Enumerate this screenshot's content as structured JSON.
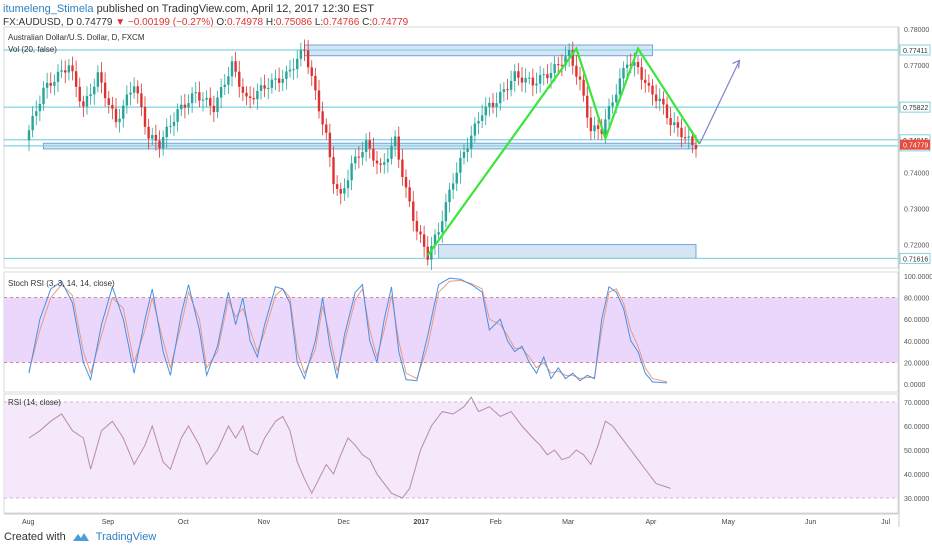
{
  "header": {
    "author": "itumeleng_Stimela",
    "published_text": "published on TradingView.com, April 12, 2017 12:30 EST",
    "symbol": "FX:AUDUSD, D",
    "last": "0.74779",
    "change": "−0.00199 (−0.27%)",
    "ohlc": [
      {
        "label": "O:",
        "value": "0.74978"
      },
      {
        "label": "H:",
        "value": "0.75086"
      },
      {
        "label": "L:",
        "value": "0.74766"
      },
      {
        "label": "C:",
        "value": "0.74779"
      }
    ]
  },
  "footer": {
    "created_with": "Created with",
    "brand": "TradingView"
  },
  "colors": {
    "up": "#26a69a",
    "down": "#e03131",
    "green_line": "#39e639",
    "zone_fill": "#c8dcf0",
    "zone_stroke": "#5b8fd6",
    "hline": "#7fd4e0",
    "stoch_k": "#4a90e2",
    "stoch_d": "#e89a84",
    "stoch_band": "#e8d0fb",
    "rsi_line": "#b98aa8",
    "rsi_band": "#f4e6fb",
    "price_tag": "#e74c3c",
    "arrow": "#7b84c9"
  },
  "chart_data": [
    {
      "type": "candlestick",
      "title": "Australian Dollar/U.S. Dollar, D, FXCM",
      "subtitle": "Vol (20, false)",
      "xaxis": {
        "tick_labels": [
          "Aug",
          "Sep",
          "Oct",
          "Nov",
          "Dec",
          "2017",
          "Feb",
          "Mar",
          "Apr",
          "May",
          "Jun",
          "Jul"
        ],
        "tick_index": [
          0,
          22,
          43,
          65,
          87,
          108,
          129,
          149,
          172,
          193,
          216,
          237
        ]
      },
      "yaxis": {
        "ticks": [
          "0.78000",
          "0.77000",
          "0.74000",
          "0.73000",
          "0.72000"
        ],
        "tick_values": [
          0.78,
          0.77,
          0.74,
          0.73,
          0.72
        ],
        "level_labels": [
          "0.77411",
          "0.75822",
          "0.74915",
          "0.74745",
          "0.71616"
        ],
        "level_values": [
          0.77411,
          0.75822,
          0.74915,
          0.74745,
          0.71616
        ],
        "last_price_label": "0.74779",
        "last_price": 0.74779,
        "ylim": [
          0.7135,
          0.7805
        ]
      },
      "horizontal_levels": [
        0.77411,
        0.75822,
        0.74915,
        0.74745,
        0.71616
      ],
      "zones": [
        {
          "x0": 76,
          "x1": 172,
          "y0": 0.7725,
          "y1": 0.7755
        },
        {
          "x0": 4,
          "x1": 184,
          "y0": 0.7466,
          "y1": 0.7482
        },
        {
          "x0": 113,
          "x1": 184,
          "y0": 0.7162,
          "y1": 0.72
        }
      ],
      "green_pattern": [
        [
          110,
          0.717
        ],
        [
          151,
          0.7745
        ],
        [
          159,
          0.7495
        ],
        [
          168,
          0.7745
        ],
        [
          185,
          0.748
        ]
      ],
      "projection_arrow": {
        "from": [
          185,
          0.748
        ],
        "to": [
          196,
          0.7712
        ]
      },
      "close_path": [
        [
          0,
          0.749
        ],
        [
          5,
          0.763
        ],
        [
          12,
          0.77
        ],
        [
          16,
          0.758
        ],
        [
          20,
          0.767
        ],
        [
          25,
          0.754
        ],
        [
          30,
          0.765
        ],
        [
          34,
          0.75
        ],
        [
          37,
          0.748
        ],
        [
          42,
          0.757
        ],
        [
          47,
          0.762
        ],
        [
          52,
          0.758
        ],
        [
          57,
          0.77
        ],
        [
          61,
          0.76
        ],
        [
          66,
          0.764
        ],
        [
          72,
          0.767
        ],
        [
          74,
          0.77
        ],
        [
          77,
          0.7745
        ],
        [
          80,
          0.762
        ],
        [
          83,
          0.75
        ],
        [
          85,
          0.738
        ],
        [
          87,
          0.733
        ],
        [
          90,
          0.742
        ],
        [
          94,
          0.748
        ],
        [
          98,
          0.741
        ],
        [
          102,
          0.749
        ],
        [
          105,
          0.735
        ],
        [
          108,
          0.724
        ],
        [
          111,
          0.717
        ],
        [
          114,
          0.724
        ],
        [
          118,
          0.738
        ],
        [
          122,
          0.748
        ],
        [
          126,
          0.757
        ],
        [
          130,
          0.76
        ],
        [
          135,
          0.767
        ],
        [
          140,
          0.765
        ],
        [
          145,
          0.768
        ],
        [
          150,
          0.773
        ],
        [
          153,
          0.765
        ],
        [
          156,
          0.752
        ],
        [
          159,
          0.752
        ],
        [
          162,
          0.76
        ],
        [
          166,
          0.771
        ],
        [
          169,
          0.769
        ],
        [
          172,
          0.763
        ],
        [
          175,
          0.76
        ],
        [
          178,
          0.754
        ],
        [
          181,
          0.751
        ],
        [
          184,
          0.7478
        ]
      ]
    },
    {
      "type": "line",
      "title": "Stoch RSI (3, 3, 14, 14, close)",
      "ylim": [
        0,
        100
      ],
      "yticks": [
        "100.0000",
        "80.0000",
        "60.0000",
        "40.0000",
        "20.0000",
        "0.0000"
      ],
      "ytick_values": [
        100,
        80,
        60,
        40,
        20,
        0
      ],
      "band": [
        20,
        80
      ],
      "series_k_points": [
        [
          0,
          10
        ],
        [
          3,
          60
        ],
        [
          6,
          88
        ],
        [
          9,
          95
        ],
        [
          12,
          75
        ],
        [
          15,
          20
        ],
        [
          17,
          4
        ],
        [
          20,
          55
        ],
        [
          23,
          90
        ],
        [
          26,
          60
        ],
        [
          29,
          10
        ],
        [
          32,
          60
        ],
        [
          34,
          88
        ],
        [
          37,
          30
        ],
        [
          39,
          8
        ],
        [
          42,
          65
        ],
        [
          44,
          92
        ],
        [
          47,
          50
        ],
        [
          49,
          8
        ],
        [
          52,
          35
        ],
        [
          55,
          85
        ],
        [
          57,
          55
        ],
        [
          59,
          80
        ],
        [
          61,
          40
        ],
        [
          63,
          25
        ],
        [
          65,
          55
        ],
        [
          68,
          90
        ],
        [
          70,
          88
        ],
        [
          72,
          75
        ],
        [
          74,
          20
        ],
        [
          76,
          5
        ],
        [
          79,
          40
        ],
        [
          81,
          80
        ],
        [
          83,
          35
        ],
        [
          85,
          5
        ],
        [
          87,
          45
        ],
        [
          90,
          85
        ],
        [
          92,
          92
        ],
        [
          94,
          40
        ],
        [
          96,
          20
        ],
        [
          98,
          60
        ],
        [
          100,
          90
        ],
        [
          102,
          30
        ],
        [
          104,
          4
        ],
        [
          107,
          3
        ],
        [
          110,
          45
        ],
        [
          113,
          92
        ],
        [
          116,
          98
        ],
        [
          119,
          97
        ],
        [
          122,
          92
        ],
        [
          125,
          85
        ],
        [
          127,
          50
        ],
        [
          130,
          60
        ],
        [
          132,
          40
        ],
        [
          134,
          30
        ],
        [
          136,
          35
        ],
        [
          138,
          20
        ],
        [
          140,
          10
        ],
        [
          142,
          25
        ],
        [
          144,
          5
        ],
        [
          146,
          15
        ],
        [
          148,
          5
        ],
        [
          150,
          10
        ],
        [
          152,
          3
        ],
        [
          154,
          8
        ],
        [
          156,
          5
        ],
        [
          158,
          60
        ],
        [
          160,
          90
        ],
        [
          162,
          85
        ],
        [
          164,
          70
        ],
        [
          166,
          40
        ],
        [
          168,
          30
        ],
        [
          170,
          10
        ],
        [
          172,
          2
        ],
        [
          176,
          1
        ]
      ],
      "series_d_points": [
        [
          0,
          12
        ],
        [
          3,
          50
        ],
        [
          6,
          80
        ],
        [
          9,
          92
        ],
        [
          12,
          82
        ],
        [
          15,
          30
        ],
        [
          17,
          10
        ],
        [
          20,
          45
        ],
        [
          23,
          80
        ],
        [
          26,
          70
        ],
        [
          29,
          20
        ],
        [
          32,
          50
        ],
        [
          34,
          80
        ],
        [
          37,
          40
        ],
        [
          39,
          15
        ],
        [
          42,
          55
        ],
        [
          44,
          85
        ],
        [
          47,
          60
        ],
        [
          49,
          15
        ],
        [
          52,
          30
        ],
        [
          55,
          78
        ],
        [
          57,
          62
        ],
        [
          59,
          70
        ],
        [
          61,
          50
        ],
        [
          63,
          30
        ],
        [
          65,
          48
        ],
        [
          68,
          82
        ],
        [
          70,
          88
        ],
        [
          72,
          80
        ],
        [
          74,
          30
        ],
        [
          76,
          10
        ],
        [
          79,
          32
        ],
        [
          81,
          72
        ],
        [
          83,
          45
        ],
        [
          85,
          12
        ],
        [
          87,
          38
        ],
        [
          90,
          78
        ],
        [
          92,
          88
        ],
        [
          94,
          50
        ],
        [
          96,
          25
        ],
        [
          98,
          50
        ],
        [
          100,
          82
        ],
        [
          102,
          40
        ],
        [
          104,
          10
        ],
        [
          107,
          5
        ],
        [
          110,
          35
        ],
        [
          113,
          85
        ],
        [
          116,
          95
        ],
        [
          119,
          96
        ],
        [
          122,
          93
        ],
        [
          125,
          88
        ],
        [
          127,
          60
        ],
        [
          130,
          55
        ],
        [
          132,
          45
        ],
        [
          134,
          33
        ],
        [
          136,
          33
        ],
        [
          138,
          25
        ],
        [
          140,
          15
        ],
        [
          142,
          20
        ],
        [
          144,
          10
        ],
        [
          146,
          12
        ],
        [
          148,
          8
        ],
        [
          150,
          8
        ],
        [
          152,
          5
        ],
        [
          154,
          6
        ],
        [
          156,
          6
        ],
        [
          158,
          50
        ],
        [
          160,
          85
        ],
        [
          162,
          88
        ],
        [
          164,
          75
        ],
        [
          166,
          50
        ],
        [
          168,
          35
        ],
        [
          170,
          15
        ],
        [
          172,
          5
        ],
        [
          176,
          2
        ]
      ]
    },
    {
      "type": "line",
      "title": "RSI (14, close)",
      "ylim": [
        26,
        72
      ],
      "yticks": [
        "70.0000",
        "60.0000",
        "50.0000",
        "40.0000",
        "30.0000"
      ],
      "ytick_values": [
        70,
        60,
        50,
        40,
        30
      ],
      "band": [
        30,
        70
      ],
      "series_points": [
        [
          0,
          55
        ],
        [
          3,
          58
        ],
        [
          6,
          62
        ],
        [
          9,
          65
        ],
        [
          12,
          58
        ],
        [
          15,
          55
        ],
        [
          17,
          42
        ],
        [
          20,
          58
        ],
        [
          23,
          62
        ],
        [
          26,
          55
        ],
        [
          29,
          44
        ],
        [
          32,
          52
        ],
        [
          34,
          60
        ],
        [
          37,
          45
        ],
        [
          39,
          42
        ],
        [
          42,
          55
        ],
        [
          44,
          60
        ],
        [
          47,
          52
        ],
        [
          49,
          44
        ],
        [
          52,
          50
        ],
        [
          55,
          60
        ],
        [
          57,
          55
        ],
        [
          59,
          60
        ],
        [
          61,
          50
        ],
        [
          63,
          48
        ],
        [
          65,
          55
        ],
        [
          68,
          62
        ],
        [
          70,
          64
        ],
        [
          72,
          58
        ],
        [
          74,
          45
        ],
        [
          76,
          38
        ],
        [
          78,
          32
        ],
        [
          80,
          38
        ],
        [
          82,
          44
        ],
        [
          84,
          40
        ],
        [
          86,
          48
        ],
        [
          88,
          55
        ],
        [
          90,
          52
        ],
        [
          92,
          48
        ],
        [
          94,
          46
        ],
        [
          96,
          40
        ],
        [
          98,
          36
        ],
        [
          100,
          32
        ],
        [
          103,
          30
        ],
        [
          105,
          34
        ],
        [
          108,
          50
        ],
        [
          111,
          60
        ],
        [
          114,
          66
        ],
        [
          117,
          65
        ],
        [
          120,
          68
        ],
        [
          122,
          72
        ],
        [
          124,
          66
        ],
        [
          127,
          68
        ],
        [
          130,
          64
        ],
        [
          133,
          66
        ],
        [
          136,
          60
        ],
        [
          139,
          55
        ],
        [
          141,
          52
        ],
        [
          143,
          48
        ],
        [
          145,
          50
        ],
        [
          147,
          46
        ],
        [
          149,
          47
        ],
        [
          151,
          50
        ],
        [
          153,
          48
        ],
        [
          155,
          44
        ],
        [
          157,
          52
        ],
        [
          159,
          62
        ],
        [
          161,
          60
        ],
        [
          163,
          56
        ],
        [
          165,
          52
        ],
        [
          167,
          48
        ],
        [
          169,
          44
        ],
        [
          171,
          40
        ],
        [
          173,
          36
        ],
        [
          175,
          35
        ],
        [
          177,
          34
        ]
      ]
    }
  ]
}
